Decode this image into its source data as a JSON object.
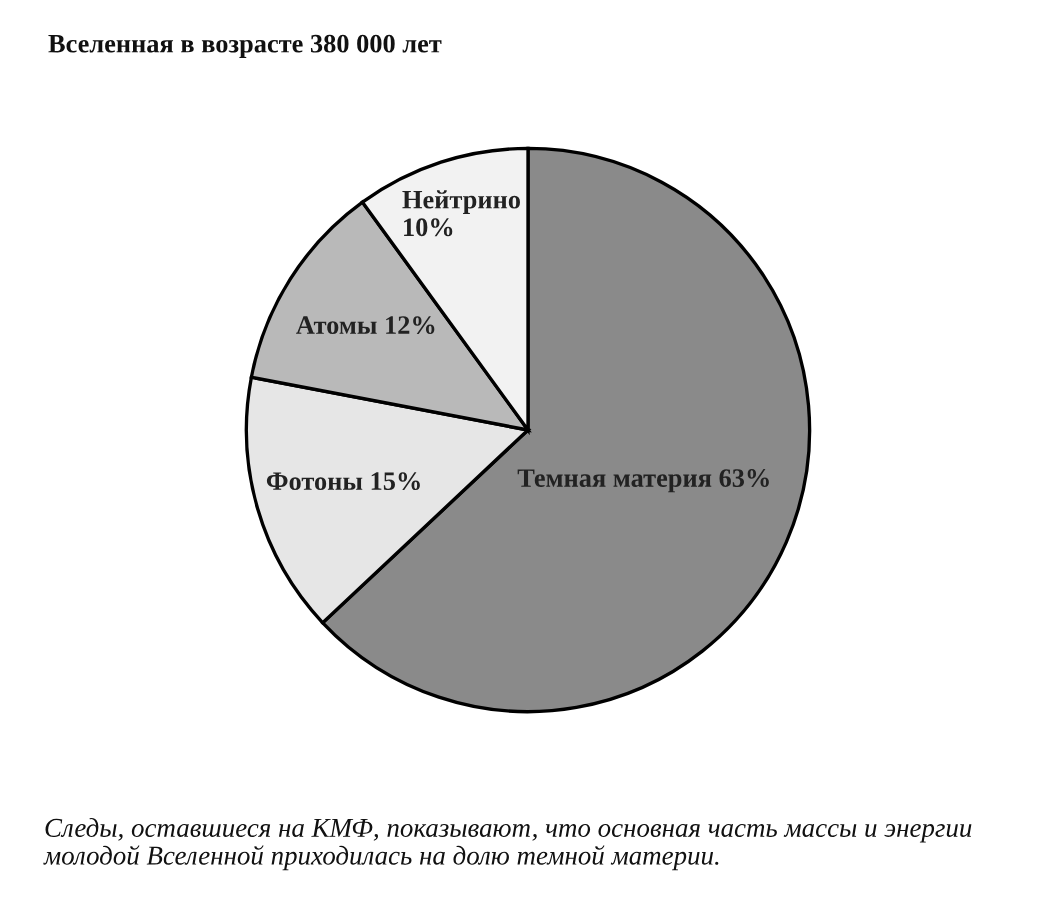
{
  "chart_data": {
    "type": "pie",
    "title": "Вселенная в возрасте 380 000 лет",
    "categories": [
      "Темная материя",
      "Фотоны",
      "Атомы",
      "Нейтрино"
    ],
    "values": [
      63,
      15,
      12,
      10
    ],
    "value_labels": [
      "63%",
      "15%",
      "12%",
      "10%"
    ],
    "colors": [
      "#8a8a8a",
      "#e6e6e6",
      "#b9b9b9",
      "#f2f2f2"
    ],
    "annotations": [
      "Следы, оставшиеся на КМФ, показывают, что основная часть массы и энергии молодой Вселенной приходилась на долю темной материи."
    ]
  }
}
